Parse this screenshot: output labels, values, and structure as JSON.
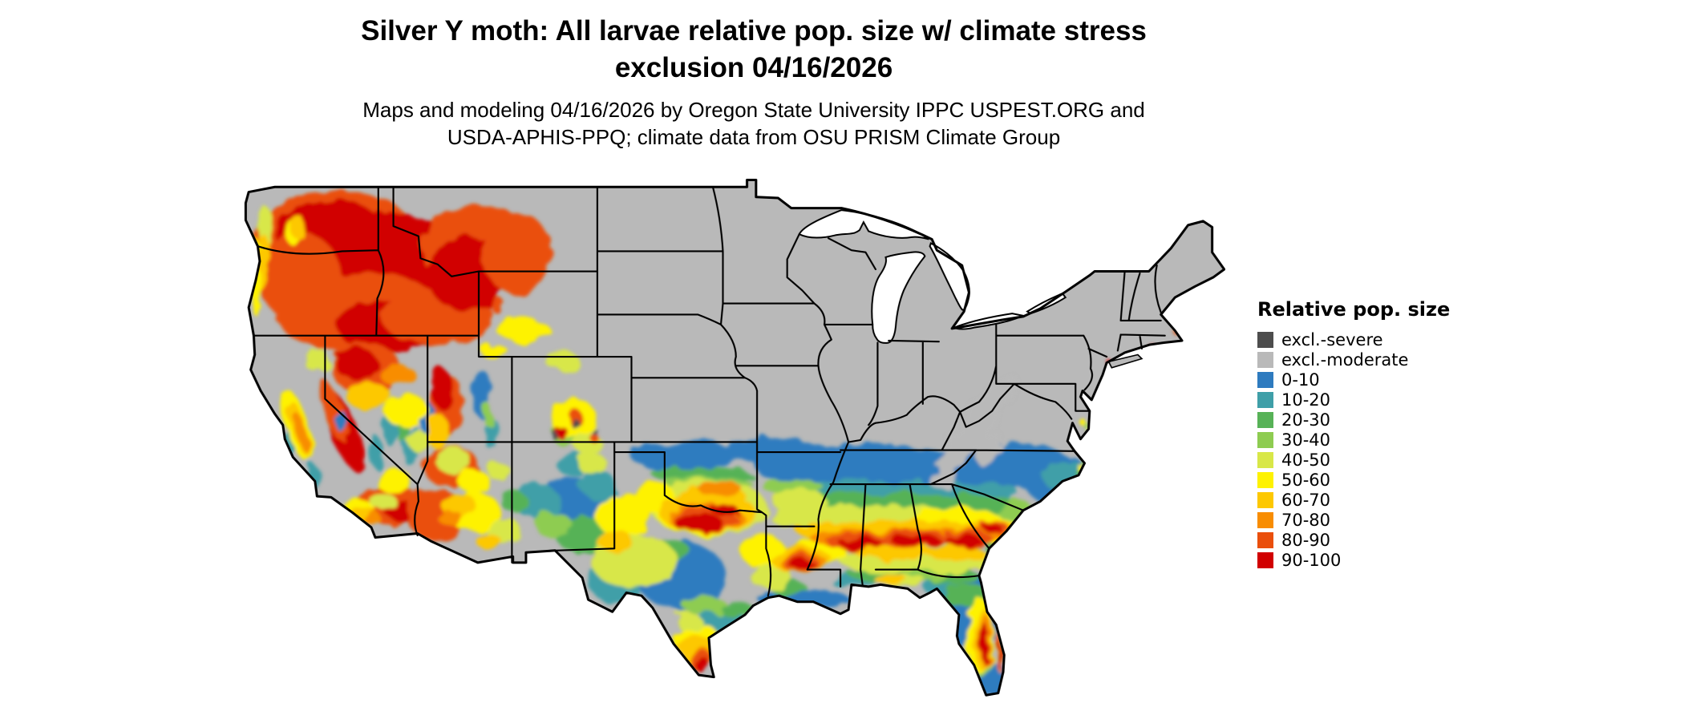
{
  "title_line1": "Silver Y moth: All larvae relative pop. size w/ climate stress",
  "title_line2": "exclusion 04/16/2026",
  "subtitle_line1": "Maps and modeling 04/16/2026 by Oregon State University IPPC USPEST.ORG and",
  "subtitle_line2": "USDA-APHIS-PPQ; climate data from OSU PRISM Climate Group",
  "legend": {
    "title": "Relative pop. size",
    "items": [
      {
        "label": "excl.-severe",
        "color": "#4d4d4d"
      },
      {
        "label": "excl.-moderate",
        "color": "#b9b9b9"
      },
      {
        "label": "0-10",
        "color": "#2e7bbf"
      },
      {
        "label": "10-20",
        "color": "#3f9fa8"
      },
      {
        "label": "20-30",
        "color": "#57b257"
      },
      {
        "label": "30-40",
        "color": "#8ecc51"
      },
      {
        "label": "40-50",
        "color": "#d8e748"
      },
      {
        "label": "50-60",
        "color": "#fef201"
      },
      {
        "label": "60-70",
        "color": "#fdc801"
      },
      {
        "label": "70-80",
        "color": "#f88d01"
      },
      {
        "label": "80-90",
        "color": "#ea4f0c"
      },
      {
        "label": "90-100",
        "color": "#d10000"
      }
    ]
  }
}
